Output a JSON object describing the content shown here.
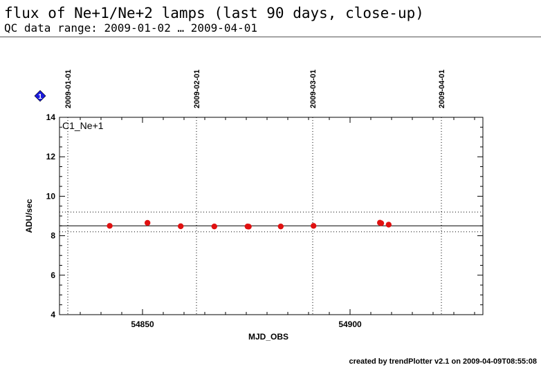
{
  "header": {
    "title": "flux of Ne+1/Ne+2 lamps (last 90 days, close-up)",
    "subtitle": "QC data range: 2009-01-02 … 2009-04-01"
  },
  "footer": {
    "credit": "created by trendPlotter v2.1 on 2009-04-09T08:55:08"
  },
  "marker": {
    "label": "1",
    "color": "#1a1adc"
  },
  "colors": {
    "points": "#e01010",
    "axes": "#000000",
    "ref_lines": "#000000"
  },
  "chart_data": {
    "type": "scatter",
    "panel_label": "C1_Ne+1",
    "xlabel": "MJD_OBS",
    "ylabel": "ADU/sec",
    "xlim": [
      54830.0,
      54932.0
    ],
    "ylim": [
      4,
      14
    ],
    "xticks": [
      54850,
      54900
    ],
    "xtick_labels": [
      "54850",
      "54900"
    ],
    "yticks": [
      4,
      6,
      8,
      10,
      12,
      14
    ],
    "ytick_labels": [
      "4",
      "6",
      "8",
      "10",
      "12",
      "14"
    ],
    "date_markers": [
      {
        "label": "2009-01-01",
        "x": 54832.0
      },
      {
        "label": "2009-02-01",
        "x": 54863.0
      },
      {
        "label": "2009-03-01",
        "x": 54891.0
      },
      {
        "label": "2009-04-01",
        "x": 54922.0
      }
    ],
    "reference_lines": {
      "mean": 8.5,
      "upper": 9.2,
      "lower": 8.2
    },
    "grid": false,
    "series": [
      {
        "x": [
          54842.1,
          54851.2,
          54859.2,
          54867.3,
          54875.3,
          54875.6,
          54883.3,
          54891.2,
          54907.2,
          54907.5,
          54909.3
        ],
        "y": [
          8.5,
          8.65,
          8.48,
          8.47,
          8.47,
          8.46,
          8.47,
          8.5,
          8.66,
          8.63,
          8.56
        ]
      }
    ]
  }
}
